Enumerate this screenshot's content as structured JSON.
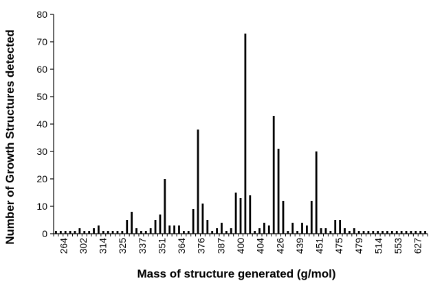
{
  "chart_data": {
    "type": "bar",
    "title": "",
    "xlabel": "Mass of structure generated (g/mol)",
    "ylabel": "Number of Growth Structures detected",
    "ylim": [
      0,
      80
    ],
    "y_ticks": [
      0,
      10,
      20,
      30,
      40,
      50,
      60,
      70,
      80
    ],
    "grid": false,
    "legend": "none",
    "bar_color": "#000000",
    "x_tick_labels": [
      "264",
      "302",
      "314",
      "325",
      "337",
      "351",
      "364",
      "376",
      "387",
      "400",
      "404",
      "426",
      "439",
      "451",
      "475",
      "479",
      "514",
      "553",
      "627"
    ],
    "values": [
      1,
      1,
      1,
      1,
      1,
      2,
      1,
      1,
      2,
      3,
      1,
      1,
      1,
      1,
      1,
      5,
      8,
      2,
      1,
      1,
      2,
      5,
      7,
      20,
      3,
      3,
      3,
      1,
      1,
      9,
      38,
      11,
      5,
      1,
      2,
      4,
      1,
      2,
      15,
      13,
      73,
      14,
      1,
      2,
      4,
      3,
      43,
      31,
      12,
      1,
      4,
      1,
      4,
      3,
      12,
      30,
      2,
      2,
      1,
      5,
      5,
      2,
      1,
      2,
      1,
      1,
      1,
      1,
      1,
      1,
      1,
      1,
      1,
      1,
      1,
      1,
      1,
      1,
      1
    ]
  }
}
